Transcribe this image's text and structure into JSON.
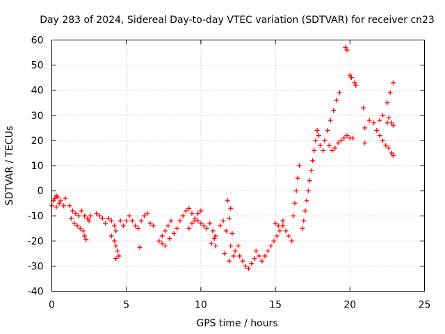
{
  "chart_data": {
    "type": "scatter",
    "title": "Day 283 of 2024, Sidereal Day-to-day VTEC variation (SDTVAR) for receiver cn23",
    "xlabel": "GPS time / hours",
    "ylabel": "SDTVAR / TECUs",
    "xlim": [
      0,
      25
    ],
    "ylim": [
      -40,
      60
    ],
    "x_ticks": [
      0,
      5,
      10,
      15,
      20,
      25
    ],
    "y_ticks": [
      -40,
      -30,
      -20,
      -10,
      0,
      10,
      20,
      30,
      40,
      50,
      60
    ],
    "grid": true,
    "marker": "+",
    "color": "#ff0000",
    "series": [
      {
        "name": "SDTVAR",
        "points": [
          [
            0.0,
            -6
          ],
          [
            0.1,
            -4
          ],
          [
            0.2,
            -3
          ],
          [
            0.3,
            -2
          ],
          [
            0.4,
            -2.5
          ],
          [
            0.5,
            -5
          ],
          [
            0.3,
            -6.5
          ],
          [
            0.6,
            -4
          ],
          [
            0.9,
            -3
          ],
          [
            0.8,
            -6
          ],
          [
            1.2,
            -6
          ],
          [
            1.4,
            -8
          ],
          [
            1.6,
            -9
          ],
          [
            1.8,
            -10
          ],
          [
            1.3,
            -11
          ],
          [
            1.5,
            -13
          ],
          [
            1.7,
            -14
          ],
          [
            1.9,
            -15
          ],
          [
            2.1,
            -16
          ],
          [
            2.2,
            -18
          ],
          [
            2.3,
            -19.5
          ],
          [
            2.0,
            -8
          ],
          [
            2.2,
            -10
          ],
          [
            2.4,
            -11
          ],
          [
            2.5,
            -12
          ],
          [
            2.6,
            -10
          ],
          [
            3.0,
            -9
          ],
          [
            3.2,
            -10
          ],
          [
            3.4,
            -11
          ],
          [
            3.6,
            -13
          ],
          [
            3.8,
            -11
          ],
          [
            4.0,
            -12
          ],
          [
            4.2,
            -14
          ],
          [
            4.3,
            -16
          ],
          [
            4.0,
            -18
          ],
          [
            4.2,
            -20
          ],
          [
            4.3,
            -22
          ],
          [
            4.4,
            -24
          ],
          [
            4.5,
            -26
          ],
          [
            4.3,
            -27
          ],
          [
            4.6,
            -12
          ],
          [
            4.8,
            -14
          ],
          [
            5.0,
            -12
          ],
          [
            5.2,
            -10
          ],
          [
            5.4,
            -12
          ],
          [
            5.6,
            -14
          ],
          [
            5.8,
            -15
          ],
          [
            6.0,
            -12
          ],
          [
            6.2,
            -10
          ],
          [
            6.4,
            -9
          ],
          [
            6.6,
            -13
          ],
          [
            6.8,
            -14
          ],
          [
            5.9,
            -22.5
          ],
          [
            7.2,
            -20
          ],
          [
            7.4,
            -18
          ],
          [
            7.6,
            -16
          ],
          [
            7.8,
            -14
          ],
          [
            8.0,
            -12
          ],
          [
            7.4,
            -21
          ],
          [
            7.6,
            -22
          ],
          [
            7.9,
            -19
          ],
          [
            8.2,
            -17
          ],
          [
            8.4,
            -15
          ],
          [
            8.6,
            -12
          ],
          [
            8.8,
            -10
          ],
          [
            9.0,
            -8
          ],
          [
            9.2,
            -7
          ],
          [
            9.4,
            -9
          ],
          [
            9.6,
            -11
          ],
          [
            9.8,
            -12
          ],
          [
            10.0,
            -13
          ],
          [
            10.2,
            -14
          ],
          [
            10.4,
            -15
          ],
          [
            9.2,
            -15
          ],
          [
            9.4,
            -13
          ],
          [
            9.6,
            -12
          ],
          [
            9.8,
            -9
          ],
          [
            10.0,
            -8
          ],
          [
            10.6,
            -13
          ],
          [
            10.8,
            -16
          ],
          [
            10.9,
            -19
          ],
          [
            11.0,
            -22
          ],
          [
            10.7,
            -21
          ],
          [
            11.0,
            -18
          ],
          [
            11.3,
            -14
          ],
          [
            11.5,
            -12
          ],
          [
            11.7,
            -16
          ],
          [
            11.6,
            -25
          ],
          [
            11.9,
            -28
          ],
          [
            12.0,
            -22
          ],
          [
            12.1,
            -17
          ],
          [
            11.9,
            -11
          ],
          [
            12.0,
            -7
          ],
          [
            11.8,
            -4
          ],
          [
            12.2,
            -26
          ],
          [
            12.3,
            -24
          ],
          [
            12.5,
            -22
          ],
          [
            12.6,
            -26
          ],
          [
            12.8,
            -28
          ],
          [
            13.0,
            -30
          ],
          [
            13.2,
            -31
          ],
          [
            13.4,
            -29
          ],
          [
            13.6,
            -27
          ],
          [
            13.7,
            -24
          ],
          [
            13.9,
            -26
          ],
          [
            14.1,
            -28
          ],
          [
            14.3,
            -26
          ],
          [
            14.5,
            -24
          ],
          [
            14.7,
            -22
          ],
          [
            14.9,
            -20
          ],
          [
            15.1,
            -18
          ],
          [
            15.3,
            -16
          ],
          [
            15.5,
            -14
          ],
          [
            15.0,
            -13
          ],
          [
            15.2,
            -14
          ],
          [
            15.5,
            -12
          ],
          [
            15.7,
            -16
          ],
          [
            15.9,
            -18
          ],
          [
            16.1,
            -20
          ],
          [
            16.2,
            -10
          ],
          [
            16.3,
            -5
          ],
          [
            16.4,
            0
          ],
          [
            16.5,
            5
          ],
          [
            16.6,
            10
          ],
          [
            16.8,
            -15
          ],
          [
            16.9,
            -12
          ],
          [
            17.0,
            -8
          ],
          [
            17.1,
            -4
          ],
          [
            17.2,
            0
          ],
          [
            17.3,
            4
          ],
          [
            17.4,
            8
          ],
          [
            17.5,
            12
          ],
          [
            17.6,
            16
          ],
          [
            17.7,
            20
          ],
          [
            17.8,
            24
          ],
          [
            17.9,
            22
          ],
          [
            18.0,
            18
          ],
          [
            18.2,
            16
          ],
          [
            18.3,
            20
          ],
          [
            18.5,
            24
          ],
          [
            18.7,
            28
          ],
          [
            18.9,
            32
          ],
          [
            19.1,
            36
          ],
          [
            19.3,
            39
          ],
          [
            18.6,
            18
          ],
          [
            18.8,
            16
          ],
          [
            19.0,
            17
          ],
          [
            19.2,
            19
          ],
          [
            19.4,
            20
          ],
          [
            19.6,
            21
          ],
          [
            19.8,
            22
          ],
          [
            20.0,
            21
          ],
          [
            20.2,
            21
          ],
          [
            19.7,
            57
          ],
          [
            19.8,
            56
          ],
          [
            20.0,
            46
          ],
          [
            20.1,
            45
          ],
          [
            20.3,
            43
          ],
          [
            20.4,
            42
          ],
          [
            20.9,
            33
          ],
          [
            21.0,
            25
          ],
          [
            21.0,
            19
          ],
          [
            21.3,
            28
          ],
          [
            21.6,
            27
          ],
          [
            21.8,
            24
          ],
          [
            22.0,
            22
          ],
          [
            22.2,
            20
          ],
          [
            22.4,
            18
          ],
          [
            22.0,
            28
          ],
          [
            22.2,
            30
          ],
          [
            22.5,
            27
          ],
          [
            22.6,
            29
          ],
          [
            22.8,
            27
          ],
          [
            22.9,
            26
          ],
          [
            22.5,
            35
          ],
          [
            22.7,
            39
          ],
          [
            22.9,
            43
          ],
          [
            22.6,
            17
          ],
          [
            22.8,
            15
          ],
          [
            22.9,
            14
          ]
        ]
      }
    ]
  }
}
